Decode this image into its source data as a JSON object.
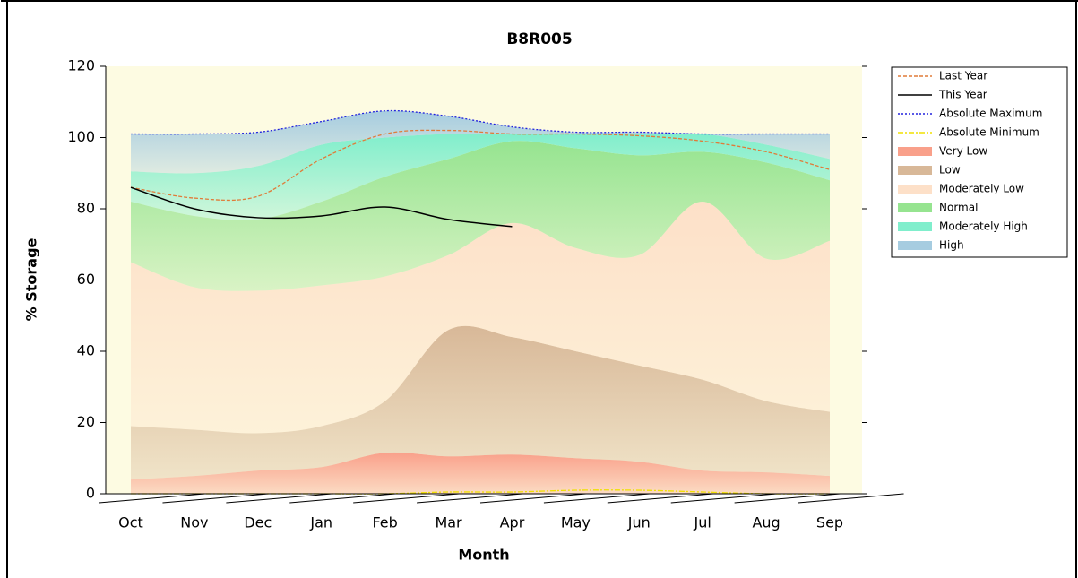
{
  "chart_data": {
    "type": "area",
    "title": "B8R005",
    "x_label": "Month",
    "y_label": "% Storage",
    "categories": [
      "Oct",
      "Nov",
      "Dec",
      "Jan",
      "Feb",
      "Mar",
      "Apr",
      "May",
      "Jun",
      "Jul",
      "Aug",
      "Sep"
    ],
    "ylim": [
      0,
      120
    ],
    "yticks": [
      0,
      20,
      40,
      60,
      80,
      100,
      120
    ],
    "legend": "right",
    "series": [
      {
        "name": "Last Year",
        "kind": "line",
        "dash": "dashed",
        "color": "#e07b39",
        "values": [
          86,
          83,
          83.5,
          94,
          101,
          102,
          101,
          101,
          100.5,
          99,
          96,
          91
        ]
      },
      {
        "name": "This Year",
        "kind": "line",
        "dash": "solid",
        "color": "#000000",
        "values": [
          86,
          80,
          77.5,
          78,
          80.5,
          77,
          75,
          null,
          null,
          null,
          null,
          null
        ]
      },
      {
        "name": "Absolute Maximum",
        "kind": "line",
        "dash": "dotted",
        "color": "#2222dd",
        "values": [
          101,
          101,
          101.5,
          104.5,
          107.5,
          106,
          103,
          101.5,
          101.5,
          101,
          101,
          101
        ]
      },
      {
        "name": "Absolute Minimum",
        "kind": "line",
        "dash": "dashdot",
        "color": "#f0e000",
        "values": [
          0,
          0,
          0,
          0,
          0,
          0.5,
          0.5,
          1,
          1,
          0.5,
          0,
          0
        ]
      },
      {
        "name": "Very Low",
        "kind": "stack",
        "color": "#f9a08a",
        "values": [
          4,
          5,
          6.5,
          7.5,
          11.5,
          10.5,
          11,
          10,
          9,
          6.5,
          6,
          5
        ]
      },
      {
        "name": "Low",
        "kind": "stack",
        "color": "#d8b898",
        "values": [
          15,
          13,
          10.5,
          11.5,
          14.5,
          35.5,
          33,
          30,
          27,
          25.5,
          20,
          18
        ]
      },
      {
        "name": "Moderately Low",
        "kind": "stack",
        "color": "#fde0c8",
        "values": [
          46,
          40,
          40,
          39.5,
          35,
          21,
          32,
          29,
          31,
          50,
          40,
          48
        ]
      },
      {
        "name": "Normal",
        "kind": "stack",
        "color": "#96e490",
        "values": [
          17,
          20,
          20,
          23.5,
          28,
          27,
          23,
          28,
          28,
          14,
          27,
          17
        ]
      },
      {
        "name": "Moderately High",
        "kind": "stack",
        "color": "#80eecc",
        "values": [
          8.5,
          12,
          15,
          16,
          11,
          7,
          2,
          4,
          6,
          5,
          5,
          6
        ]
      },
      {
        "name": "High",
        "kind": "stack",
        "color": "#a6cce0",
        "values": [
          10.5,
          11,
          9.5,
          6.5,
          7.5,
          5,
          2,
          0.5,
          0.5,
          0,
          3,
          7
        ]
      }
    ]
  }
}
